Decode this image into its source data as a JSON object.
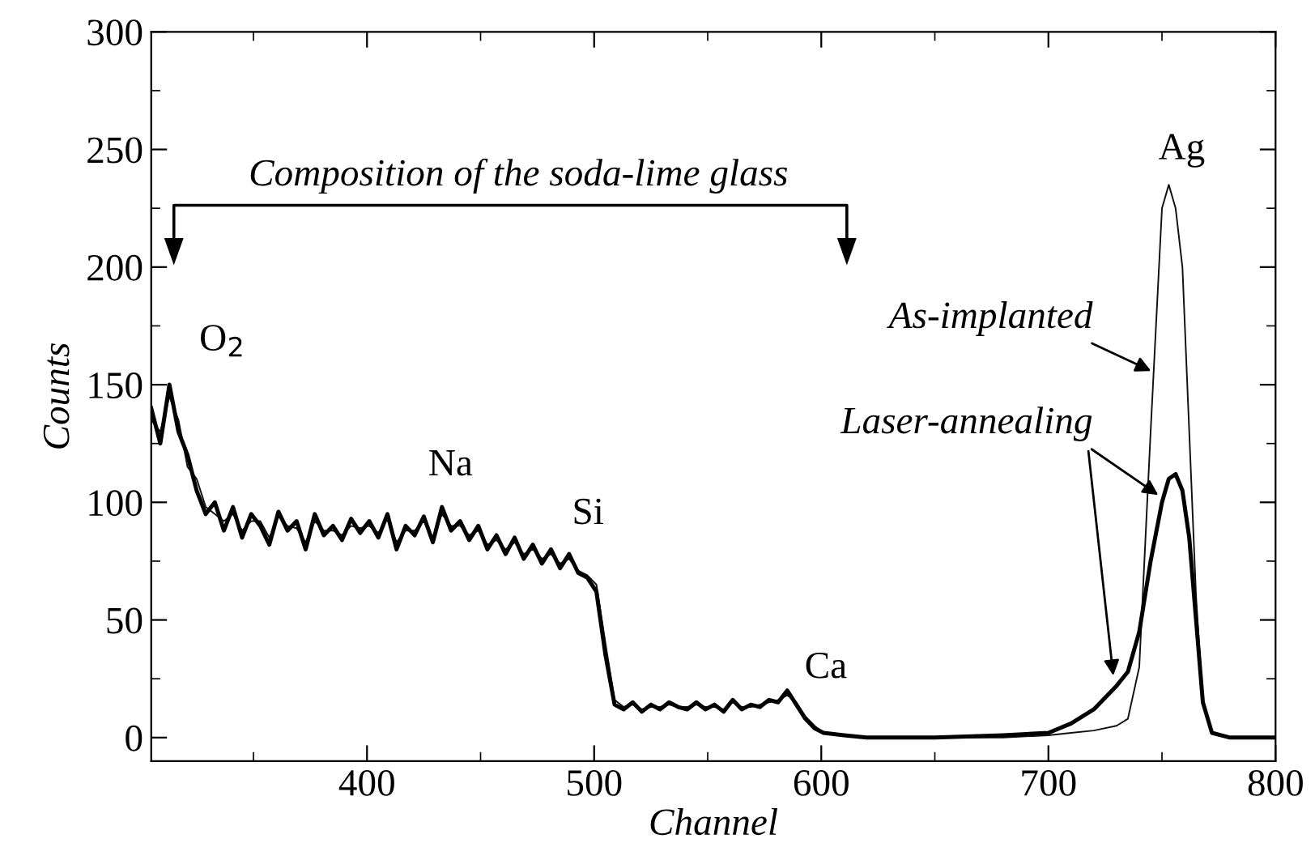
{
  "chart_data": {
    "type": "line",
    "xlabel": "Channel",
    "ylabel": "Counts",
    "xlim": [
      305,
      800
    ],
    "ylim": [
      -10,
      300
    ],
    "xticks": [
      400,
      500,
      600,
      700,
      800
    ],
    "yticks": [
      0,
      50,
      100,
      150,
      200,
      250,
      300
    ],
    "grid": false,
    "legend": false,
    "marker": "none",
    "line_style": "solid",
    "series": [
      {
        "color": "#111111",
        "x": [
          305,
          309,
          313,
          317,
          321,
          325,
          329,
          333,
          337,
          341,
          345,
          349,
          353,
          357,
          361,
          365,
          369,
          373,
          377,
          381,
          385,
          389,
          393,
          397,
          401,
          405,
          409,
          413,
          417,
          421,
          425,
          429,
          433,
          437,
          441,
          445,
          449,
          453,
          457,
          461,
          465,
          469,
          473,
          477,
          481,
          485,
          489,
          493,
          497,
          501,
          505,
          509,
          513,
          517,
          521,
          525,
          529,
          533,
          537,
          541,
          545,
          549,
          553,
          557,
          561,
          565,
          569,
          573,
          577,
          581,
          585,
          589,
          593,
          597,
          601,
          610,
          620,
          650,
          680,
          700,
          710,
          720,
          730,
          735,
          740,
          745,
          750,
          753,
          756,
          759,
          762,
          765,
          768,
          772,
          780,
          800
        ],
        "values": [
          135,
          130,
          145,
          135,
          115,
          110,
          98,
          95,
          92,
          95,
          88,
          92,
          92,
          85,
          94,
          90,
          89,
          83,
          92,
          88,
          88,
          86,
          90,
          89,
          90,
          87,
          93,
          83,
          88,
          88,
          92,
          85,
          95,
          90,
          90,
          86,
          88,
          82,
          84,
          80,
          83,
          78,
          80,
          76,
          78,
          74,
          76,
          71,
          69,
          65,
          40,
          16,
          13,
          14,
          12,
          13,
          13,
          14,
          13,
          13,
          14,
          13,
          13,
          12,
          15,
          13,
          13,
          14,
          15,
          16,
          18,
          15,
          9,
          5,
          2,
          1,
          0,
          0,
          0,
          1,
          2,
          3,
          5,
          8,
          30,
          130,
          225,
          235,
          225,
          200,
          130,
          60,
          15,
          2,
          0,
          0
        ]
      },
      {
        "color": "#000000",
        "x": [
          305,
          309,
          313,
          317,
          321,
          325,
          329,
          333,
          337,
          341,
          345,
          349,
          353,
          357,
          361,
          365,
          369,
          373,
          377,
          381,
          385,
          389,
          393,
          397,
          401,
          405,
          409,
          413,
          417,
          421,
          425,
          429,
          433,
          437,
          441,
          445,
          449,
          453,
          457,
          461,
          465,
          469,
          473,
          477,
          481,
          485,
          489,
          493,
          497,
          501,
          505,
          509,
          513,
          517,
          521,
          525,
          529,
          533,
          537,
          541,
          545,
          549,
          553,
          557,
          561,
          565,
          569,
          573,
          577,
          581,
          585,
          589,
          593,
          597,
          601,
          610,
          620,
          650,
          680,
          700,
          710,
          720,
          730,
          735,
          740,
          745,
          750,
          753,
          756,
          759,
          762,
          765,
          768,
          772,
          780,
          800
        ],
        "values": [
          140,
          125,
          150,
          130,
          120,
          105,
          95,
          100,
          88,
          98,
          85,
          95,
          90,
          82,
          96,
          88,
          92,
          80,
          95,
          86,
          90,
          84,
          93,
          87,
          92,
          85,
          95,
          80,
          90,
          86,
          94,
          83,
          98,
          88,
          92,
          84,
          90,
          80,
          86,
          78,
          85,
          76,
          82,
          74,
          80,
          72,
          78,
          70,
          68,
          62,
          35,
          14,
          12,
          15,
          11,
          14,
          12,
          15,
          13,
          12,
          15,
          12,
          14,
          11,
          16,
          12,
          14,
          13,
          16,
          15,
          20,
          14,
          8,
          4,
          2,
          1,
          0,
          0,
          1,
          2,
          6,
          12,
          22,
          28,
          45,
          75,
          100,
          110,
          112,
          105,
          85,
          50,
          15,
          2,
          0,
          0
        ]
      }
    ],
    "annotations": [
      "Composition of the soda-lime glass",
      "O$_{2}$",
      "Na",
      "Si",
      "Ca",
      "Ag",
      {
        "text": "As-implanted",
        "x": 747,
        "y": 155
      },
      {
        "text": "Laser-annealing",
        "x": 750,
        "y": 102
      }
    ]
  }
}
